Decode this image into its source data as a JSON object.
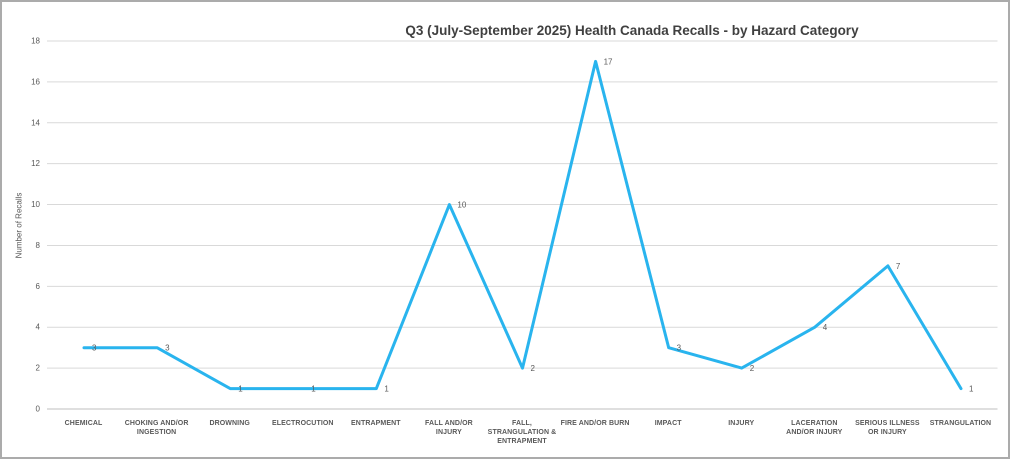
{
  "colors": {
    "background": "#FFFFFF",
    "frame_border": "#ABABAB",
    "series_line": "#29B4EE",
    "gridline": "#D9D9D9",
    "axis_line": "#BFBFBF",
    "title_text": "#404040",
    "label_text": "#595959"
  },
  "chart_data": {
    "type": "line",
    "title": "Q3 (July-September 2025) Health Canada Recalls - by Hazard Category",
    "xlabel": "",
    "ylabel": "Number of Recalls",
    "ylim": [
      0,
      18
    ],
    "ytick_step": 2,
    "grid": true,
    "legend_position": "none",
    "markers": false,
    "data_labels_position": "right",
    "categories": [
      "CHEMICAL",
      "CHOKING AND/OR INGESTION",
      "DROWNING",
      "ELECTROCUTION",
      "ENTRAPMENT",
      "FALL AND/OR INJURY",
      "FALL, STRANGULATION & ENTRAPMENT",
      "FIRE AND/OR BURN",
      "IMPACT",
      "INJURY",
      "LACERATION AND/OR INJURY",
      "SERIOUS ILLNESS OR INJURY",
      "STRANGULATION"
    ],
    "category_label_lines": [
      [
        "CHEMICAL"
      ],
      [
        "CHOKING AND/OR",
        "INGESTION"
      ],
      [
        "DROWNING"
      ],
      [
        "ELECTROCUTION"
      ],
      [
        "ENTRAPMENT"
      ],
      [
        "FALL AND/OR",
        "INJURY"
      ],
      [
        "FALL,",
        "STRANGULATION &",
        "ENTRAPMENT"
      ],
      [
        "FIRE AND/OR BURN"
      ],
      [
        "IMPACT"
      ],
      [
        "INJURY"
      ],
      [
        "LACERATION",
        "AND/OR INJURY"
      ],
      [
        "SERIOUS ILLNESS",
        "OR INJURY"
      ],
      [
        "STRANGULATION"
      ]
    ],
    "series": [
      {
        "name": "Number of Recalls",
        "values": [
          3,
          3,
          1,
          1,
          1,
          10,
          2,
          17,
          3,
          2,
          4,
          7,
          1
        ]
      }
    ]
  }
}
